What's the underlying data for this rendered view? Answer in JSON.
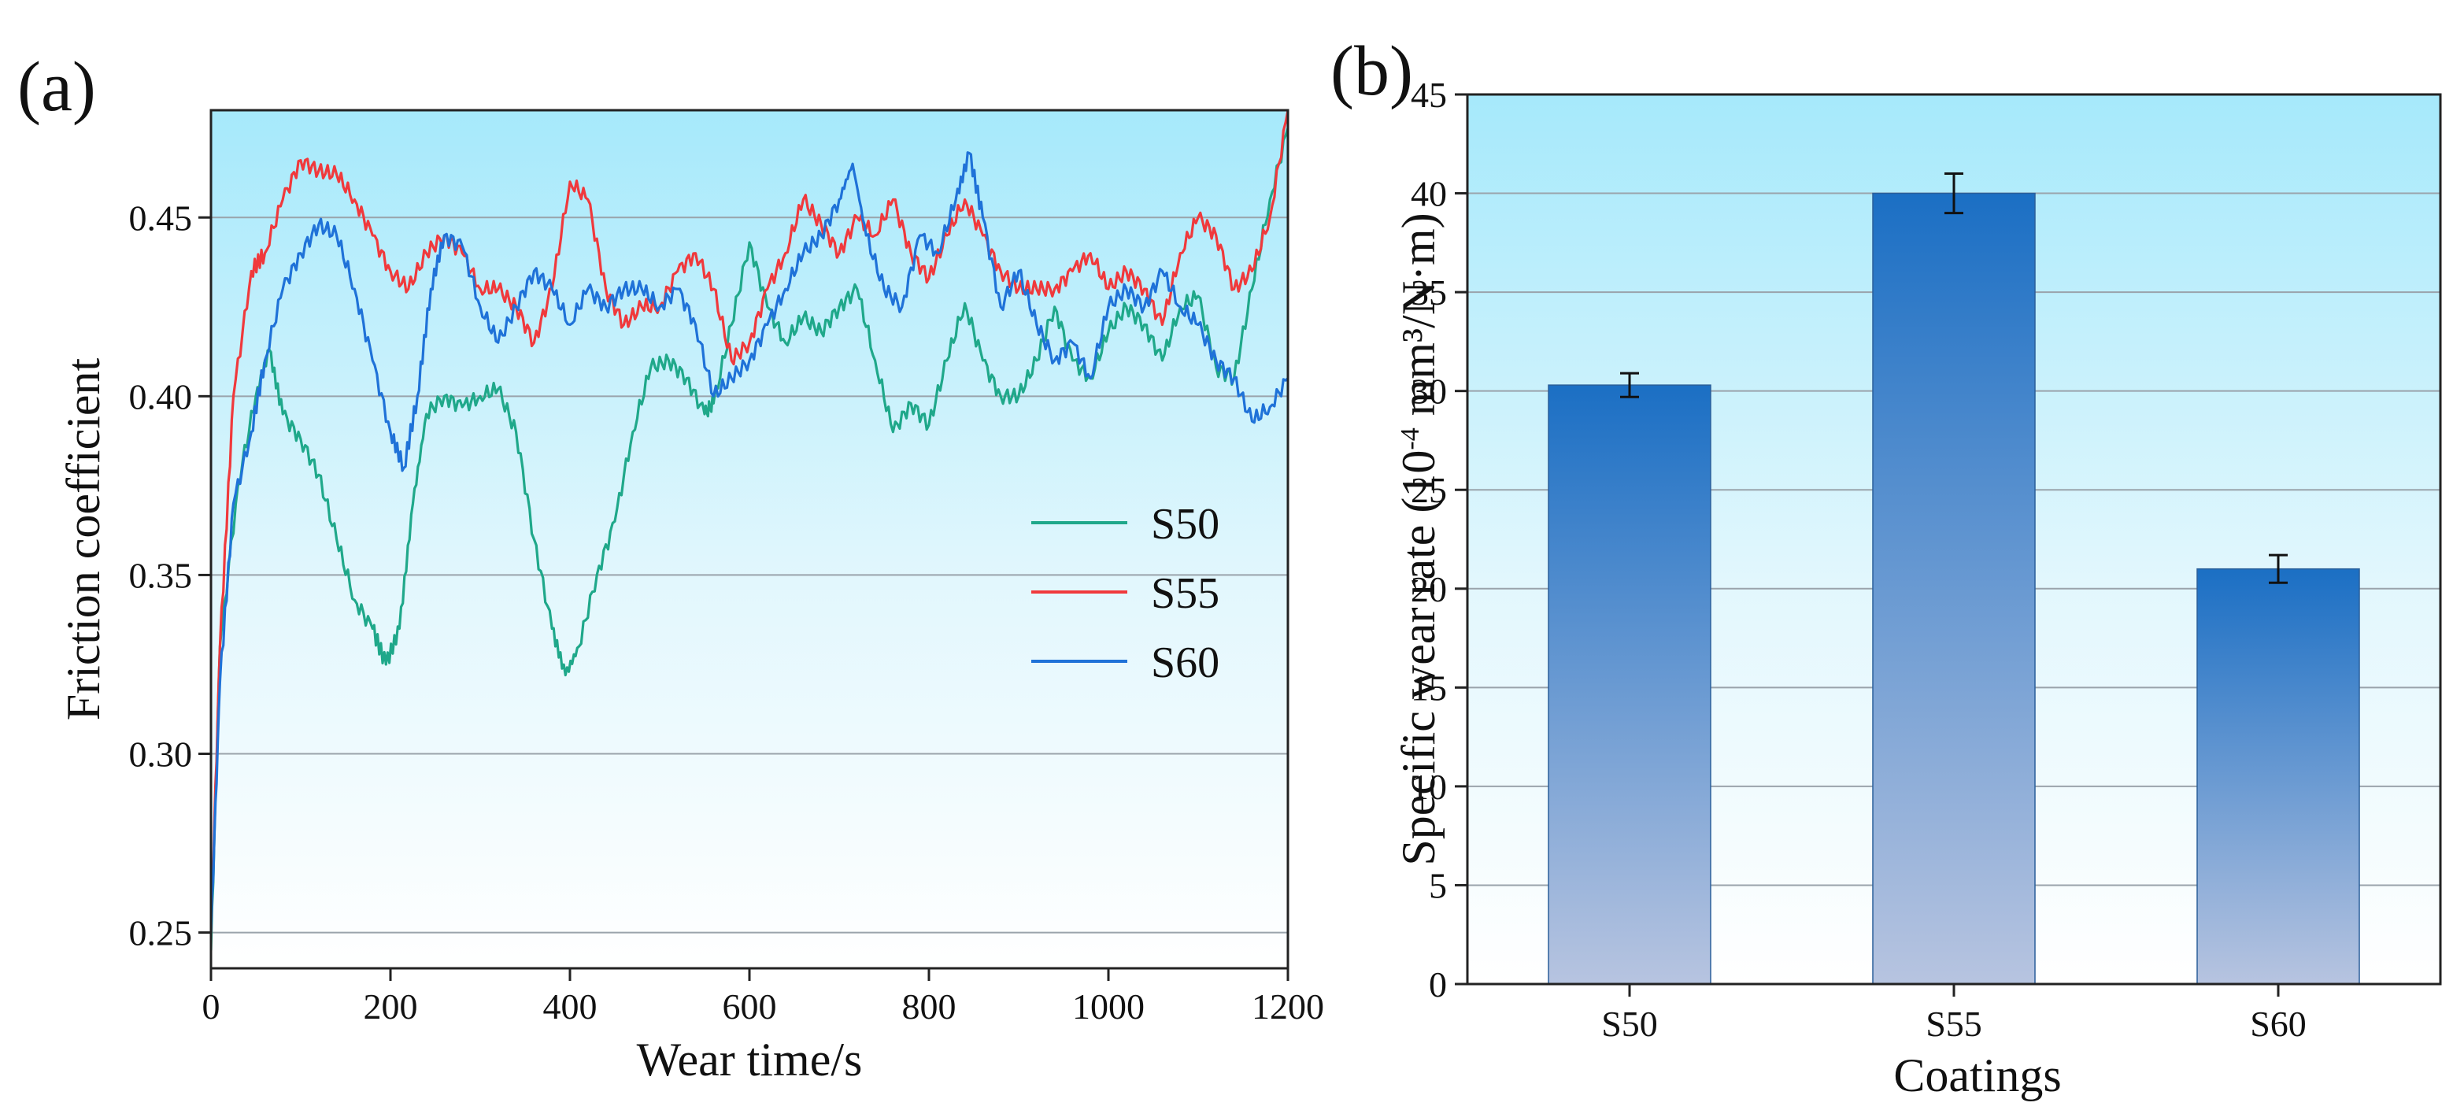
{
  "chart_data": [
    {
      "type": "line",
      "panel_label": "(a)",
      "xlabel": "Wear time/s",
      "ylabel": "Friction coefficient",
      "xlim": [
        0,
        1200
      ],
      "ylim": [
        0.24,
        0.48
      ],
      "x_ticks": [
        "0",
        "200",
        "400",
        "600",
        "800",
        "1000",
        "1200"
      ],
      "y_ticks": [
        "0.25",
        "0.30",
        "0.35",
        "0.40",
        "0.45"
      ],
      "grid": true,
      "legend_position": "center-right",
      "background": "gradient light-blue (top) to white (bottom)",
      "series": [
        {
          "name": "S50",
          "color": "#1fa88a",
          "x": [
            0,
            10,
            30,
            50,
            65,
            80,
            100,
            120,
            140,
            160,
            180,
            195,
            210,
            225,
            240,
            260,
            280,
            300,
            320,
            340,
            360,
            380,
            395,
            410,
            430,
            450,
            470,
            490,
            510,
            530,
            550,
            560,
            580,
            600,
            620,
            640,
            660,
            680,
            700,
            720,
            740,
            760,
            780,
            800,
            820,
            840,
            860,
            880,
            900,
            920,
            940,
            960,
            980,
            1000,
            1020,
            1040,
            1060,
            1080,
            1100,
            1120,
            1140,
            1160,
            1180,
            1200
          ],
          "y": [
            0.245,
            0.33,
            0.375,
            0.4,
            0.413,
            0.395,
            0.388,
            0.378,
            0.36,
            0.343,
            0.335,
            0.325,
            0.335,
            0.37,
            0.395,
            0.4,
            0.397,
            0.4,
            0.402,
            0.39,
            0.36,
            0.335,
            0.322,
            0.33,
            0.35,
            0.365,
            0.39,
            0.408,
            0.41,
            0.405,
            0.395,
            0.398,
            0.42,
            0.443,
            0.425,
            0.415,
            0.422,
            0.418,
            0.425,
            0.43,
            0.41,
            0.39,
            0.398,
            0.392,
            0.41,
            0.426,
            0.41,
            0.4,
            0.4,
            0.41,
            0.425,
            0.41,
            0.405,
            0.418,
            0.425,
            0.42,
            0.41,
            0.425,
            0.428,
            0.408,
            0.405,
            0.43,
            0.455,
            0.475
          ]
        },
        {
          "name": "S55",
          "color": "#f0393c",
          "x": [
            0,
            10,
            25,
            45,
            60,
            80,
            100,
            120,
            140,
            160,
            180,
            200,
            220,
            240,
            260,
            280,
            300,
            320,
            340,
            360,
            380,
            400,
            420,
            440,
            460,
            480,
            500,
            520,
            540,
            560,
            580,
            600,
            620,
            640,
            660,
            680,
            700,
            720,
            740,
            760,
            780,
            800,
            820,
            840,
            860,
            880,
            900,
            920,
            940,
            960,
            980,
            1000,
            1020,
            1040,
            1060,
            1080,
            1100,
            1120,
            1140,
            1160,
            1180,
            1200
          ],
          "y": [
            0.25,
            0.33,
            0.4,
            0.435,
            0.44,
            0.455,
            0.466,
            0.463,
            0.462,
            0.455,
            0.445,
            0.435,
            0.43,
            0.44,
            0.445,
            0.44,
            0.43,
            0.43,
            0.425,
            0.415,
            0.43,
            0.46,
            0.455,
            0.43,
            0.42,
            0.425,
            0.425,
            0.435,
            0.44,
            0.43,
            0.41,
            0.415,
            0.43,
            0.44,
            0.455,
            0.448,
            0.44,
            0.45,
            0.445,
            0.455,
            0.44,
            0.433,
            0.445,
            0.455,
            0.445,
            0.435,
            0.43,
            0.43,
            0.43,
            0.435,
            0.44,
            0.43,
            0.435,
            0.43,
            0.42,
            0.44,
            0.45,
            0.445,
            0.43,
            0.435,
            0.45,
            0.48
          ]
        },
        {
          "name": "S60",
          "color": "#1f72d8",
          "x": [
            0,
            10,
            25,
            45,
            60,
            80,
            100,
            120,
            140,
            160,
            180,
            200,
            215,
            230,
            245,
            260,
            280,
            300,
            320,
            340,
            360,
            380,
            400,
            420,
            440,
            460,
            480,
            500,
            520,
            540,
            560,
            580,
            600,
            620,
            640,
            660,
            680,
            700,
            715,
            730,
            750,
            770,
            790,
            810,
            830,
            845,
            860,
            880,
            900,
            920,
            940,
            960,
            980,
            1000,
            1020,
            1040,
            1060,
            1080,
            1100,
            1120,
            1140,
            1160,
            1180,
            1200
          ],
          "y": [
            0.25,
            0.32,
            0.37,
            0.39,
            0.41,
            0.43,
            0.44,
            0.448,
            0.445,
            0.43,
            0.41,
            0.39,
            0.38,
            0.4,
            0.43,
            0.445,
            0.442,
            0.425,
            0.415,
            0.425,
            0.435,
            0.43,
            0.42,
            0.43,
            0.425,
            0.43,
            0.43,
            0.425,
            0.43,
            0.42,
            0.4,
            0.405,
            0.41,
            0.42,
            0.43,
            0.44,
            0.445,
            0.455,
            0.465,
            0.445,
            0.43,
            0.425,
            0.445,
            0.44,
            0.455,
            0.468,
            0.45,
            0.425,
            0.435,
            0.42,
            0.41,
            0.415,
            0.405,
            0.425,
            0.43,
            0.425,
            0.435,
            0.425,
            0.42,
            0.41,
            0.405,
            0.393,
            0.397,
            0.405
          ]
        }
      ]
    },
    {
      "type": "bar",
      "panel_label": "(b)",
      "xlabel": "Coatings",
      "ylabel": "Specific wear rate (10⁻⁴ mm³/N·m)",
      "ylabel_parts": {
        "prefix": "Specific wear rate (10",
        "superscript": "-4",
        "suffix": " mm³/N·m)"
      },
      "categories": [
        "S50",
        "S55",
        "S60"
      ],
      "values": [
        30.3,
        40.0,
        21.0
      ],
      "errors": [
        0.6,
        1.0,
        0.7
      ],
      "ylim": [
        0,
        45
      ],
      "y_ticks": [
        "0",
        "5",
        "10",
        "15",
        "20",
        "25",
        "30",
        "35",
        "40",
        "45"
      ],
      "grid": true,
      "bar_color_top": "#1b6fc4",
      "bar_color_bottom": "#b7c4e0",
      "background": "gradient light-blue (top) to white (bottom)"
    }
  ]
}
